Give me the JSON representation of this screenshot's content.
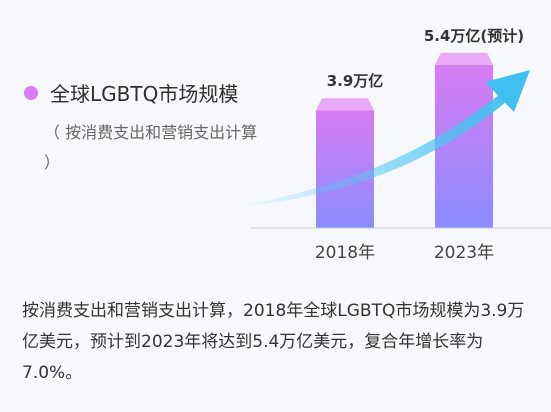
{
  "legend": {
    "label": "全球LGBTQ市场规模",
    "note": "（ 按消费支出和营销支出计算 ）",
    "color": "#d77cf2"
  },
  "chart_data": {
    "type": "bar",
    "categories": [
      "2018年",
      "2023年"
    ],
    "values": [
      3.9,
      5.4
    ],
    "value_labels": [
      "3.9万亿",
      "5.4万亿(预计)"
    ],
    "unit": "万亿美元",
    "colors": {
      "bar_top": "#d77cf2",
      "bar_bottom": "#8a8cff",
      "arrow": "#55c8f0"
    }
  },
  "caption": "按消费支出和营销支出计算，2018年全球LGBTQ市场规模为3.9万亿美元，预计到2023年将达到5.4万亿美元，复合年增长率为7.0%。"
}
